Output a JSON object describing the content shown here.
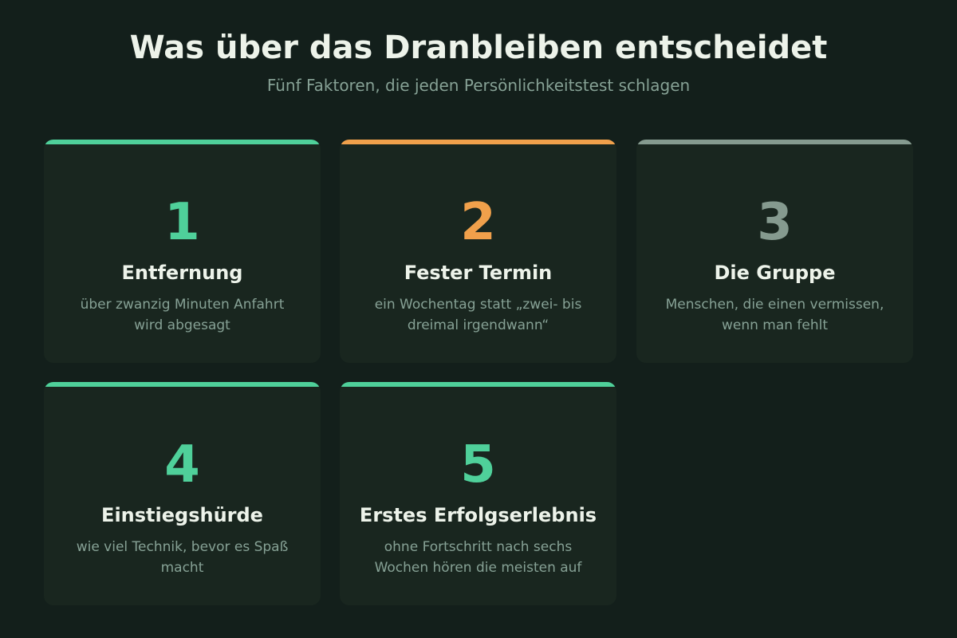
{
  "header": {
    "title": "Was über das Dranbleiben entscheidet",
    "subtitle": "Fünf Faktoren, die jeden Persönlichkeitstest schlagen"
  },
  "colors": {
    "background": "#131f1b",
    "card": "#19261f",
    "green": "#4fd09a",
    "orange": "#f0a04b",
    "grey": "#859a8f"
  },
  "cards": [
    {
      "number": "1",
      "title": "Entfernung",
      "description": "über zwanzig Minuten Anfahrt wird abgesagt",
      "accent": "#4fd09a"
    },
    {
      "number": "2",
      "title": "Fester Termin",
      "description": "ein Wochentag statt „zwei- bis dreimal irgendwann“",
      "accent": "#f0a04b"
    },
    {
      "number": "3",
      "title": "Die Gruppe",
      "description": "Menschen, die einen vermissen, wenn man fehlt",
      "accent": "#859a8f"
    },
    {
      "number": "4",
      "title": "Einstiegshürde",
      "description": "wie viel Technik, bevor es Spaß macht",
      "accent": "#4fd09a"
    },
    {
      "number": "5",
      "title": "Erstes Erfolgserlebnis",
      "description": "ohne Fortschritt nach sechs Wochen hören die meisten auf",
      "accent": "#4fd09a"
    }
  ]
}
